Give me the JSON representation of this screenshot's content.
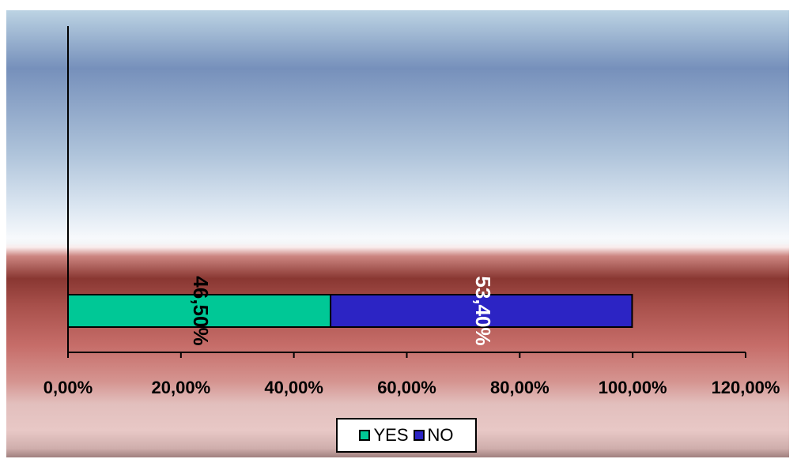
{
  "chart_data": {
    "type": "bar",
    "orientation": "horizontal",
    "stacked": true,
    "categories": [
      ""
    ],
    "series": [
      {
        "name": "YES",
        "values": [
          46.5
        ],
        "label": "46,50%",
        "color": "#00c896"
      },
      {
        "name": "NO",
        "values": [
          53.4
        ],
        "label": "53,40%",
        "color": "#2c24c4"
      }
    ],
    "xlim": [
      0,
      120
    ],
    "xticks": [
      0,
      20,
      40,
      60,
      80,
      100,
      120
    ],
    "xtick_labels": [
      "0,00%",
      "20,00%",
      "40,00%",
      "60,00%",
      "80,00%",
      "100,00%",
      "120,00%"
    ],
    "grid": false,
    "legend": "bottom-center"
  }
}
